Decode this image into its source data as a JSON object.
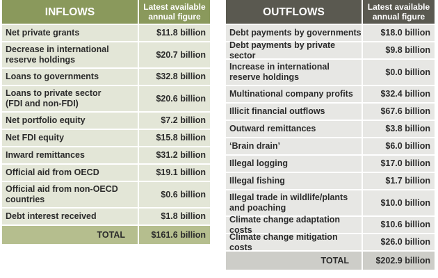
{
  "inflows": {
    "header": {
      "title": "INFLOWS",
      "figure": [
        "Latest available",
        "annual figure"
      ]
    },
    "rows": [
      [
        [
          "Net private grants"
        ],
        "$11.8 billion"
      ],
      [
        [
          "Decrease in international",
          "reserve holdings"
        ],
        "$20.7 billion"
      ],
      [
        [
          "Loans to governments"
        ],
        "$32.8 billion"
      ],
      [
        [
          "Loans to private sector",
          "(FDI and non-FDI)"
        ],
        "$20.6 billion"
      ],
      [
        [
          "Net portfolio equity"
        ],
        "$7.2 billion"
      ],
      [
        [
          "Net FDI equity"
        ],
        "$15.8 billion"
      ],
      [
        [
          "Inward remittances"
        ],
        "$31.2 billion"
      ],
      [
        [
          "Official aid from OECD"
        ],
        "$19.1 billion"
      ],
      [
        [
          "Official aid from non-OECD",
          "countries"
        ],
        "$0.6 billion"
      ],
      [
        [
          "Debt interest received"
        ],
        "$1.8 billion"
      ]
    ],
    "total": {
      "label": "TOTAL",
      "value": "$161.6 billion"
    }
  },
  "outflows": {
    "header": {
      "title": "OUTFLOWS",
      "figure": [
        "Latest available",
        "annual figure"
      ]
    },
    "rows": [
      [
        [
          "Debt payments by governments"
        ],
        "$18.0 billion"
      ],
      [
        [
          "Debt payments by private sector"
        ],
        "$9.8 billion"
      ],
      [
        [
          "Increase in international",
          "reserve holdings"
        ],
        "$0.0 billion"
      ],
      [
        [
          "Multinational company profits"
        ],
        "$32.4 billion"
      ],
      [
        [
          "Illicit financial outflows"
        ],
        "$67.6 billion"
      ],
      [
        [
          "Outward remittances"
        ],
        "$3.8 billion"
      ],
      [
        [
          "‘Brain drain’"
        ],
        "$6.0 billion"
      ],
      [
        [
          "Illegal logging"
        ],
        "$17.0 billion"
      ],
      [
        [
          "Illegal fishing"
        ],
        "$1.7 billion"
      ],
      [
        [
          "Illegal trade in wildlife/plants",
          "and poaching"
        ],
        "$10.0 billion"
      ],
      [
        [
          "Climate change adaptation costs"
        ],
        "$10.6 billion"
      ],
      [
        [
          "Climate change mitigation costs"
        ],
        "$26.0 billion"
      ]
    ],
    "total": {
      "label": "TOTAL",
      "value": "$202.9 billion"
    }
  }
}
